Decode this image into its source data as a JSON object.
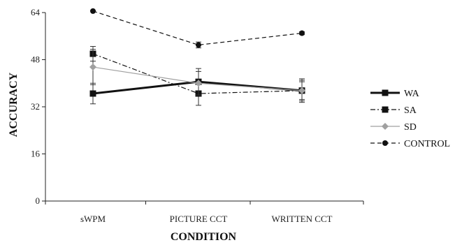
{
  "chart_data": {
    "type": "line",
    "title": "",
    "xlabel": "CONDITION",
    "ylabel": "ACCURACY",
    "categories": [
      "sWPM",
      "PICTURE CCT",
      "WRITTEN CCT"
    ],
    "ylim": [
      0,
      64
    ],
    "yticks": [
      0,
      16,
      32,
      48,
      64
    ],
    "grid": false,
    "legend_position": "right",
    "series": [
      {
        "name": "WA",
        "values": [
          36.5,
          40.5,
          37.5
        ],
        "errors": [
          3.5,
          4.5,
          3.5
        ],
        "color": "#111111",
        "line_style": "solid-thick",
        "marker": "square"
      },
      {
        "name": "SA",
        "values": [
          50.0,
          36.5,
          37.5
        ],
        "errors": [
          2.5,
          4.0,
          4.0
        ],
        "color": "#111111",
        "line_style": "dash-dot",
        "marker": "square"
      },
      {
        "name": "SD",
        "values": [
          45.5,
          40.0,
          37.5
        ],
        "errors": [
          6.0,
          4.0,
          3.0
        ],
        "color": "#a0a0a0",
        "line_style": "solid-thin",
        "marker": "diamond"
      },
      {
        "name": "CONTROL",
        "values": [
          64.5,
          53.0,
          57.0
        ],
        "errors": [
          0,
          1.0,
          0.5
        ],
        "color": "#111111",
        "line_style": "dashed",
        "marker": "circle"
      }
    ]
  }
}
